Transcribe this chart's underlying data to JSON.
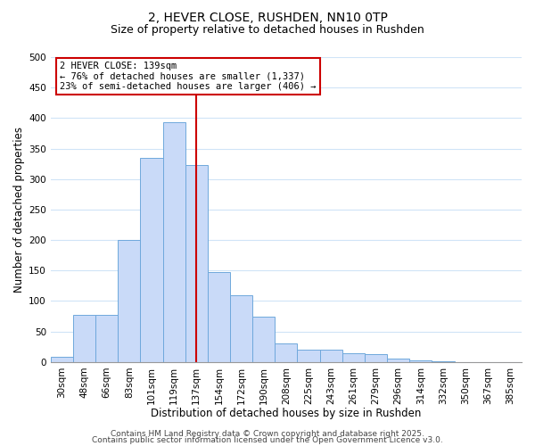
{
  "title_line1": "2, HEVER CLOSE, RUSHDEN, NN10 0TP",
  "title_line2": "Size of property relative to detached houses in Rushden",
  "xlabel": "Distribution of detached houses by size in Rushden",
  "ylabel": "Number of detached properties",
  "bar_labels": [
    "30sqm",
    "48sqm",
    "66sqm",
    "83sqm",
    "101sqm",
    "119sqm",
    "137sqm",
    "154sqm",
    "172sqm",
    "190sqm",
    "208sqm",
    "225sqm",
    "243sqm",
    "261sqm",
    "279sqm",
    "296sqm",
    "314sqm",
    "332sqm",
    "350sqm",
    "367sqm",
    "385sqm"
  ],
  "bar_values": [
    8,
    78,
    78,
    200,
    335,
    393,
    323,
    148,
    110,
    75,
    30,
    20,
    20,
    15,
    13,
    5,
    3,
    1,
    0,
    0,
    0
  ],
  "bar_color": "#c9daf8",
  "bar_edge_color": "#6fa8dc",
  "vline_x_index": 6,
  "vline_color": "#cc0000",
  "ylim": [
    0,
    500
  ],
  "yticks": [
    0,
    50,
    100,
    150,
    200,
    250,
    300,
    350,
    400,
    450,
    500
  ],
  "grid_color": "#d0e4f7",
  "annotation_title": "2 HEVER CLOSE: 139sqm",
  "annotation_line1": "← 76% of detached houses are smaller (1,337)",
  "annotation_line2": "23% of semi-detached houses are larger (406) →",
  "annotation_box_color": "#ffffff",
  "annotation_box_edge": "#cc0000",
  "footer_line1": "Contains HM Land Registry data © Crown copyright and database right 2025.",
  "footer_line2": "Contains public sector information licensed under the Open Government Licence v3.0.",
  "background_color": "#ffffff",
  "title_fontsize": 10,
  "subtitle_fontsize": 9,
  "axis_label_fontsize": 8.5,
  "tick_fontsize": 7.5,
  "annotation_fontsize": 7.5,
  "footer_fontsize": 6.5
}
